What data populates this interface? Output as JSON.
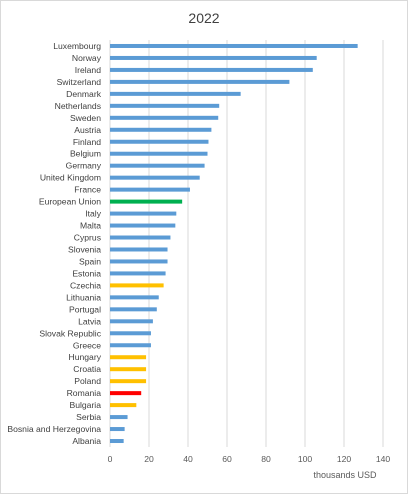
{
  "chart_data": {
    "type": "bar",
    "orientation": "horizontal",
    "title": "2022",
    "xlabel": "thousands USD",
    "ylabel": "",
    "xlim": [
      0,
      140
    ],
    "xticks": [
      0,
      20,
      40,
      60,
      80,
      100,
      120,
      140
    ],
    "grid": true,
    "legend": "none",
    "colors": {
      "default": "#5b9bd5",
      "eu": "#00b050",
      "highlight": "#ffc000",
      "romania": "#ff0000"
    },
    "categories": [
      "Luxembourg",
      "Norway",
      "Ireland",
      "Switzerland",
      "Denmark",
      "Netherlands",
      "Sweden",
      "Austria",
      "Finland",
      "Belgium",
      "Germany",
      "United Kingdom",
      "France",
      "European Union",
      "Italy",
      "Malta",
      "Cyprus",
      "Slovenia",
      "Spain",
      "Estonia",
      "Czechia",
      "Lithuania",
      "Portugal",
      "Latvia",
      "Slovak Republic",
      "Greece",
      "Hungary",
      "Croatia",
      "Poland",
      "Romania",
      "Bulgaria",
      "Serbia",
      "Bosnia and Herzegovina",
      "Albania"
    ],
    "values": [
      127,
      106,
      104,
      92,
      67,
      56,
      55.5,
      52,
      50.5,
      50,
      48.5,
      46,
      41,
      37,
      34,
      33.5,
      31,
      29.5,
      29.5,
      28.5,
      27.5,
      25,
      24,
      22,
      21,
      21,
      18.5,
      18.5,
      18.5,
      16,
      13.5,
      9,
      7.5,
      7
    ],
    "bar_colors": [
      "default",
      "default",
      "default",
      "default",
      "default",
      "default",
      "default",
      "default",
      "default",
      "default",
      "default",
      "default",
      "default",
      "eu",
      "default",
      "default",
      "default",
      "default",
      "default",
      "default",
      "highlight",
      "default",
      "default",
      "default",
      "default",
      "default",
      "highlight",
      "highlight",
      "highlight",
      "romania",
      "highlight",
      "default",
      "default",
      "default"
    ]
  }
}
